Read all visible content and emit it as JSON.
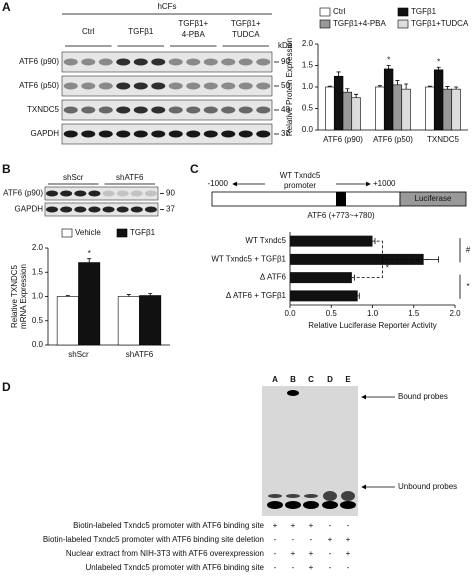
{
  "panel_labels": [
    "A",
    "B",
    "C",
    "D"
  ],
  "blot_a": {
    "cells": "hCFs",
    "groups": [
      [
        "Ctrl"
      ],
      [
        "TGFβ1"
      ],
      [
        "TGFβ1+",
        "4-PBA"
      ],
      [
        "TGFβ1+",
        "TUDCA"
      ]
    ],
    "kda_label": "kDa",
    "rows": [
      {
        "label": "ATF6 (p90)",
        "kda": "90"
      },
      {
        "label": "ATF6 (p50)",
        "kda": "50"
      },
      {
        "label": "TXNDC5",
        "kda": "48"
      },
      {
        "label": "GAPDH",
        "kda": "37"
      }
    ]
  },
  "blot_b": {
    "groups": [
      "shScr",
      "shATF6"
    ],
    "rows": [
      {
        "label": "ATF6 (p90)",
        "kda": "90"
      },
      {
        "label": "GAPDH",
        "kda": "37"
      }
    ]
  },
  "diagram_c": {
    "left": "-1000",
    "promoter": [
      "WT Txndc5",
      "promoter"
    ],
    "right": "+1000",
    "reporter": "Luciferase",
    "site": "ATF6 (+773~+780)"
  },
  "gel_d": {
    "lanes": [
      "A",
      "B",
      "C",
      "D",
      "E"
    ],
    "bound": "Bound probes",
    "unbound": "Unbound probes",
    "rows": [
      {
        "label": "Biotin-labeled Txndc5 promoter with ATF6 binding site",
        "signs": [
          "+",
          "+",
          "+",
          "-",
          "-"
        ]
      },
      {
        "label": "Biotin-labeled Txndc5 promoter with ATF6 binding site deletion",
        "signs": [
          "-",
          "-",
          "-",
          "+",
          "+"
        ]
      },
      {
        "label": "Nuclear extract from NIH-3T3 with ATF6 overexpression",
        "signs": [
          "-",
          "+",
          "+",
          "-",
          "+"
        ]
      },
      {
        "label": "Unlabeled Txndc5 promoter with ATF6 binding site",
        "signs": [
          "-",
          "-",
          "+",
          "-",
          "-"
        ]
      }
    ]
  },
  "chart_data": [
    {
      "type": "bar",
      "ylabel": [
        "Relative Protein Expression"
      ],
      "categories": [
        "ATF6 (p90)",
        "ATF6 (p50)",
        "TXNDC5"
      ],
      "ylim": [
        0,
        2
      ],
      "yticks": [
        {
          "value": 0,
          "label": "0.0"
        },
        {
          "value": 0.5,
          "label": "0.5"
        },
        {
          "value": 1,
          "label": "1.0"
        },
        {
          "value": 1.5,
          "label": "1.5"
        },
        {
          "value": 2,
          "label": "2.0"
        }
      ],
      "series": [
        {
          "name": "Ctrl",
          "color": "#ffffff",
          "values": [
            1,
            1,
            1
          ],
          "errors": [
            0.02,
            0.03,
            0.02
          ]
        },
        {
          "name": "TGFβ1",
          "color": "#111111",
          "values": [
            1.25,
            1.42,
            1.4
          ],
          "errors": [
            0.1,
            0.08,
            0.06
          ],
          "value_annotations": [
            null,
            "*",
            "*"
          ]
        },
        {
          "name": "TGFβ1+4-PBA",
          "color": "#999999",
          "values": [
            0.88,
            1.05,
            0.95
          ],
          "errors": [
            0.08,
            0.1,
            0.06
          ]
        },
        {
          "name": "TGFβ1+TUDCA",
          "color": "#dddddd",
          "values": [
            0.75,
            0.95,
            0.95
          ],
          "errors": [
            0.08,
            0.12,
            0.05
          ]
        }
      ]
    },
    {
      "type": "bar",
      "ylabel": [
        "Relative TXNDC5",
        "mRNA Expression"
      ],
      "categories": [
        "shScr",
        "shATF6"
      ],
      "ylim": [
        0,
        2
      ],
      "yticks": [
        {
          "value": 0,
          "label": "0.0"
        },
        {
          "value": 0.5,
          "label": "0.5"
        },
        {
          "value": 1,
          "label": "1.0"
        },
        {
          "value": 1.5,
          "label": "1.5"
        },
        {
          "value": 2,
          "label": "2.0"
        }
      ],
      "series": [
        {
          "name": "Vehicle",
          "color": "#ffffff",
          "values": [
            1,
            1
          ],
          "errors": [
            0.02,
            0.04
          ]
        },
        {
          "name": "TGFβ1",
          "color": "#111111",
          "values": [
            1.7,
            1.02
          ],
          "errors": [
            0.08,
            0.04
          ],
          "value_annotations": [
            "*",
            null
          ]
        }
      ]
    },
    {
      "type": "hbar",
      "xlabel": "Relative Luciferase Reporter Activity",
      "categories": [
        "WT Txndc5",
        "WT Txndc5 + TGFβ1",
        "Δ ATF6",
        "Δ ATF6 + TGFβ1"
      ],
      "values": [
        1,
        1.62,
        0.75,
        0.82
      ],
      "errors": [
        0.03,
        0.18,
        0.03,
        0.02
      ],
      "color": "#111111",
      "xlim": [
        0,
        2
      ],
      "xticks": [
        {
          "value": 0,
          "label": "0.0"
        },
        {
          "value": 0.5,
          "label": "0.5"
        },
        {
          "value": 1,
          "label": "1.0"
        },
        {
          "value": 1.5,
          "label": "1.5"
        },
        {
          "value": 2,
          "label": "2.0"
        }
      ],
      "annotations": [
        "*",
        "#",
        "*"
      ]
    }
  ]
}
